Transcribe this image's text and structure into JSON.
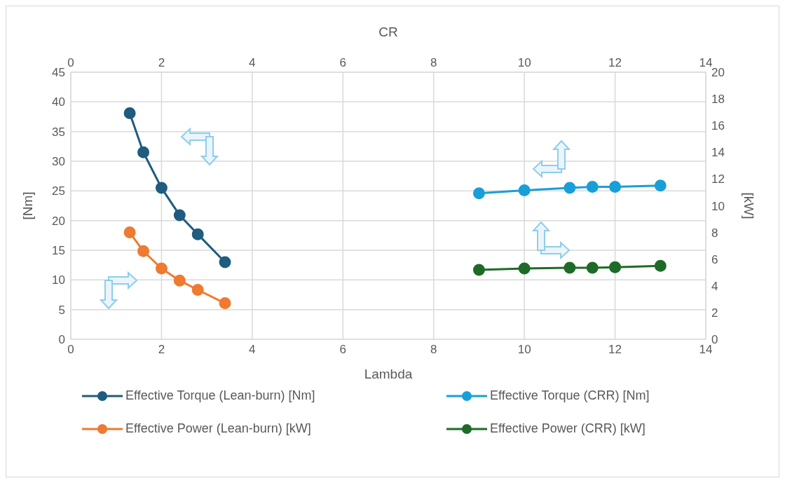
{
  "chart_data": {
    "type": "line",
    "xlabel": "Lambda",
    "x2label": "CR",
    "ylabel": "[Nm]",
    "y2label": "[kW]",
    "xlim": [
      0,
      14
    ],
    "xticks": [
      0,
      2,
      4,
      6,
      8,
      10,
      12,
      14
    ],
    "x2lim": [
      0,
      14
    ],
    "x2ticks": [
      0,
      2,
      4,
      6,
      8,
      10,
      12,
      14
    ],
    "ylim": [
      0,
      45
    ],
    "yticks": [
      0,
      5,
      10,
      15,
      20,
      25,
      30,
      35,
      40,
      45
    ],
    "y2lim": [
      0,
      20
    ],
    "y2ticks": [
      0,
      2,
      4,
      6,
      8,
      10,
      12,
      14,
      16,
      18,
      20
    ],
    "grid": true,
    "legend": "bottom",
    "marker": "circle",
    "line_style": "solid",
    "series": [
      {
        "name": "Effective Torque (Lean-burn) [Nm]",
        "color": "#1f5c7f",
        "x": [
          1.3,
          1.6,
          2.0,
          2.4,
          2.8,
          3.4
        ],
        "values": [
          38.1,
          31.5,
          25.5,
          20.9,
          17.7,
          13.0
        ]
      },
      {
        "name": "Effective Torque (CRR) [Nm]",
        "color": "#199fd8",
        "x": [
          9,
          10,
          11,
          11.5,
          12,
          13
        ],
        "values": [
          24.6,
          25.1,
          25.5,
          25.7,
          25.7,
          25.9
        ]
      },
      {
        "name": "Effective Power (Lean-burn) [kW]",
        "color": "#ef7a30",
        "axis": "y2",
        "x": [
          1.3,
          1.6,
          2.0,
          2.4,
          2.8,
          3.4
        ],
        "values": [
          8.0,
          6.6,
          5.3,
          4.4,
          3.7,
          2.7
        ]
      },
      {
        "name": "Effective Power (CRR) [kW]",
        "color": "#1e6b27",
        "axis": "y2",
        "x": [
          9,
          10,
          11,
          11.5,
          12,
          13
        ],
        "values": [
          5.2,
          5.3,
          5.35,
          5.35,
          5.4,
          5.5
        ]
      }
    ]
  }
}
